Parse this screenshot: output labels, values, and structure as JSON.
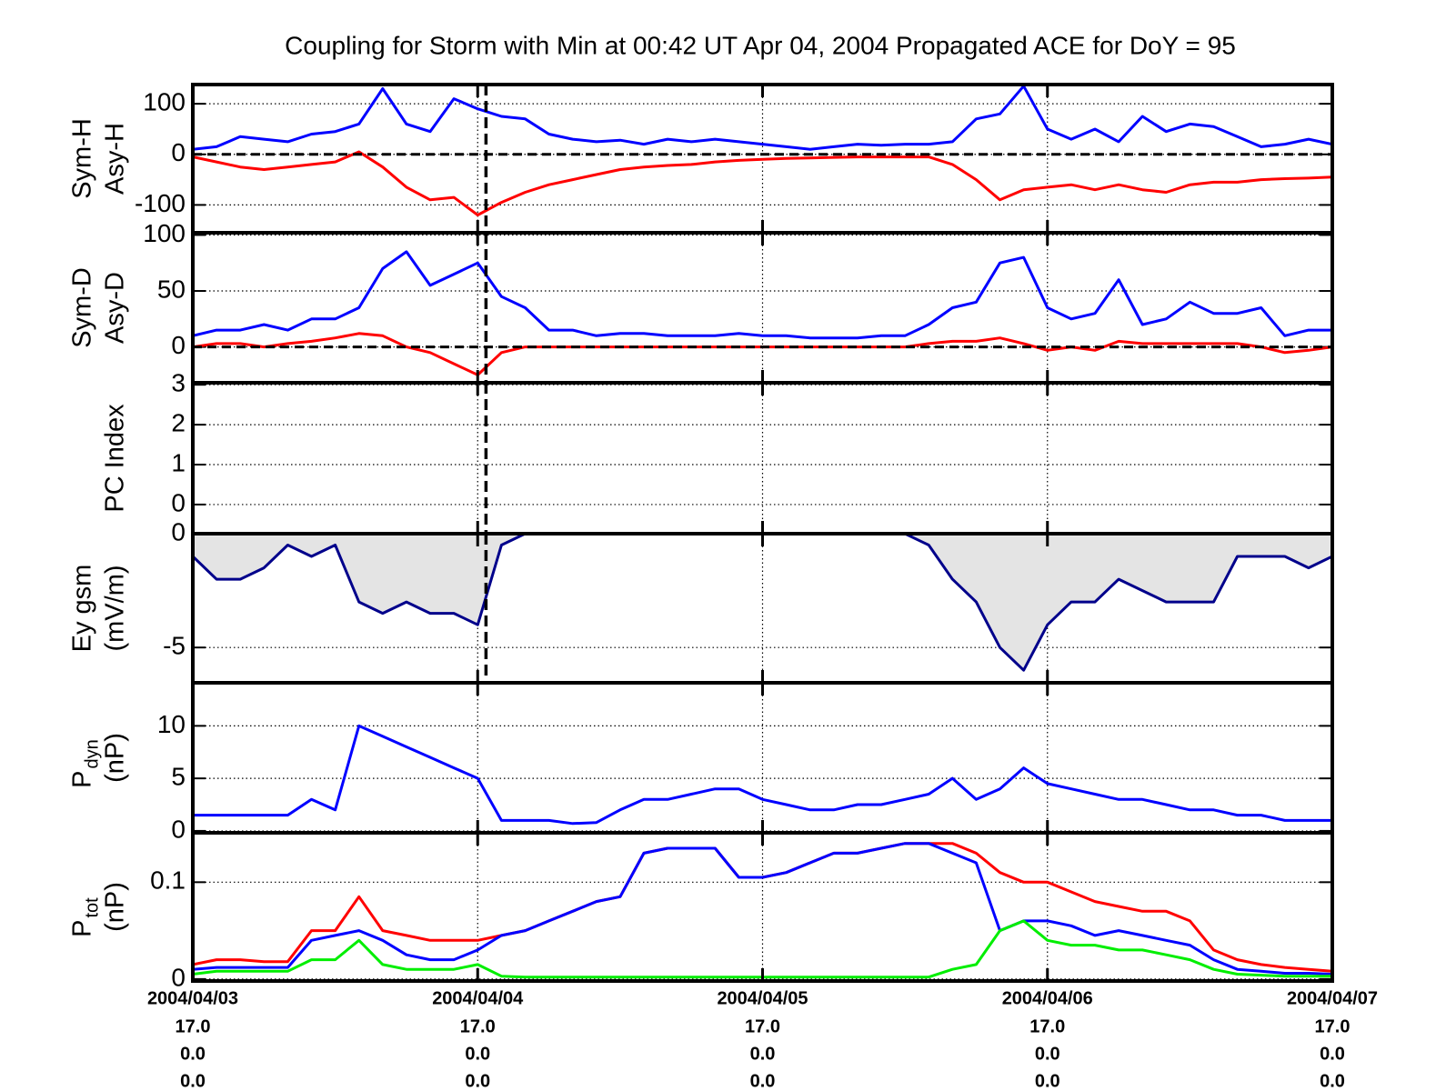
{
  "chart_data": [
    {
      "type": "line",
      "title": "Coupling for Storm with Min at 00:42 UT Apr 04, 2004  Propagated ACE for DoY = 95",
      "ylabel": [
        "Sym-H",
        "Asy-H"
      ],
      "ylim": [
        -155,
        138
      ],
      "yticks": [
        -100,
        0,
        100
      ],
      "grid": true,
      "zero_line": true,
      "event_x": 24.7,
      "xlim": [
        0,
        96
      ],
      "x": [
        0,
        2,
        4,
        6,
        8,
        10,
        12,
        14,
        16,
        18,
        20,
        22,
        24,
        26,
        28,
        30,
        32,
        34,
        36,
        38,
        40,
        42,
        44,
        46,
        48,
        50,
        52,
        54,
        56,
        58,
        60,
        62,
        64,
        66,
        68,
        70,
        72,
        74,
        76,
        78,
        80,
        82,
        84,
        86,
        88,
        90,
        92,
        94,
        96
      ],
      "series": [
        {
          "color": "#0000ff",
          "values": [
            10,
            15,
            35,
            30,
            25,
            40,
            45,
            60,
            130,
            60,
            45,
            110,
            90,
            75,
            70,
            40,
            30,
            25,
            28,
            20,
            30,
            25,
            30,
            25,
            20,
            15,
            10,
            15,
            20,
            18,
            20,
            20,
            25,
            70,
            80,
            135,
            50,
            30,
            50,
            25,
            75,
            45,
            60,
            55,
            35,
            15,
            20,
            30,
            20
          ]
        },
        {
          "color": "#ff0000",
          "values": [
            -5,
            -15,
            -25,
            -30,
            -25,
            -20,
            -15,
            5,
            -25,
            -65,
            -90,
            -85,
            -120,
            -95,
            -75,
            -60,
            -50,
            -40,
            -30,
            -25,
            -22,
            -20,
            -15,
            -12,
            -10,
            -8,
            -7,
            -6,
            -5,
            -5,
            -5,
            -5,
            -20,
            -50,
            -90,
            -70,
            -65,
            -60,
            -70,
            -60,
            -70,
            -75,
            -60,
            -55,
            -55,
            -50,
            -48,
            -47,
            -45
          ]
        }
      ]
    },
    {
      "type": "line",
      "ylabel": [
        "Sym-D",
        "Asy-D"
      ],
      "ylim": [
        -32,
        102
      ],
      "yticks": [
        0,
        50,
        100
      ],
      "grid": true,
      "zero_line": true,
      "event_x": 24.7,
      "xlim": [
        0,
        96
      ],
      "x": [
        0,
        2,
        4,
        6,
        8,
        10,
        12,
        14,
        16,
        18,
        20,
        22,
        24,
        26,
        28,
        30,
        32,
        34,
        36,
        38,
        40,
        42,
        44,
        46,
        48,
        50,
        52,
        54,
        56,
        58,
        60,
        62,
        64,
        66,
        68,
        70,
        72,
        74,
        76,
        78,
        80,
        82,
        84,
        86,
        88,
        90,
        92,
        94,
        96
      ],
      "series": [
        {
          "color": "#0000ff",
          "values": [
            10,
            15,
            15,
            20,
            15,
            25,
            25,
            35,
            70,
            85,
            55,
            65,
            75,
            45,
            35,
            15,
            15,
            10,
            12,
            12,
            10,
            10,
            10,
            12,
            10,
            10,
            8,
            8,
            8,
            10,
            10,
            20,
            35,
            40,
            75,
            80,
            35,
            25,
            30,
            60,
            20,
            25,
            40,
            30,
            30,
            35,
            10,
            15,
            15
          ]
        },
        {
          "color": "#ff0000",
          "values": [
            0,
            3,
            3,
            0,
            3,
            5,
            8,
            12,
            10,
            0,
            -5,
            -15,
            -25,
            -5,
            0,
            0,
            0,
            0,
            0,
            0,
            0,
            0,
            0,
            0,
            0,
            0,
            0,
            0,
            0,
            0,
            0,
            3,
            5,
            5,
            8,
            3,
            -3,
            0,
            -3,
            5,
            3,
            3,
            3,
            3,
            3,
            0,
            -5,
            -3,
            0
          ]
        }
      ]
    },
    {
      "type": "line",
      "ylabel": [
        "PC Index"
      ],
      "ylim": [
        -0.73,
        3.05
      ],
      "yticks": [
        0,
        1,
        2,
        3
      ],
      "grid": true,
      "event_x": 24.7,
      "xlim": [
        0,
        96
      ],
      "series": []
    },
    {
      "type": "area",
      "ylabel": [
        "Ey gsm",
        "(mV/m)"
      ],
      "ylim": [
        -6.55,
        0
      ],
      "yticks": [
        -5,
        0
      ],
      "grid": true,
      "event_x": 24.7,
      "xlim": [
        0,
        96
      ],
      "fill": "#e4e4e4",
      "x": [
        0,
        2,
        4,
        6,
        8,
        10,
        12,
        14,
        16,
        18,
        20,
        22,
        24,
        26,
        28,
        30,
        32,
        34,
        36,
        38,
        40,
        42,
        44,
        46,
        48,
        50,
        52,
        54,
        56,
        58,
        60,
        62,
        64,
        66,
        68,
        70,
        72,
        74,
        76,
        78,
        80,
        82,
        84,
        86,
        88,
        90,
        92,
        94,
        96
      ],
      "series": [
        {
          "color": "#00008b",
          "values": [
            -1,
            -2,
            -2,
            -1.5,
            -0.5,
            -1,
            -0.5,
            -3,
            -3.5,
            -3,
            -3.5,
            -3.5,
            -4,
            -0.5,
            0,
            0,
            0,
            0,
            0,
            0,
            0,
            0,
            0,
            0,
            0,
            0,
            0,
            0,
            0,
            0,
            0,
            -0.5,
            -2,
            -3,
            -5,
            -6,
            -4,
            -3,
            -3,
            -2,
            -2.5,
            -3,
            -3,
            -3,
            -1,
            -1,
            -1,
            -1.5,
            -1
          ]
        }
      ]
    },
    {
      "type": "line",
      "ylabel": [
        "P",
        "(nP)"
      ],
      "ylabel_sub": "dyn",
      "ylim": [
        -0.18,
        14.1
      ],
      "yticks": [
        0,
        5,
        10
      ],
      "grid": true,
      "xlim": [
        0,
        96
      ],
      "x": [
        0,
        2,
        4,
        6,
        8,
        10,
        12,
        14,
        16,
        18,
        20,
        22,
        24,
        26,
        28,
        30,
        32,
        34,
        36,
        38,
        40,
        42,
        44,
        46,
        48,
        50,
        52,
        54,
        56,
        58,
        60,
        62,
        64,
        66,
        68,
        70,
        72,
        74,
        76,
        78,
        80,
        82,
        84,
        86,
        88,
        90,
        92,
        94,
        96
      ],
      "series": [
        {
          "color": "#0000ff",
          "values": [
            1.5,
            1.5,
            1.5,
            1.5,
            1.5,
            3,
            2,
            10,
            9,
            8,
            7,
            6,
            5,
            1,
            1,
            1,
            0.7,
            0.8,
            2,
            3,
            3,
            3.5,
            4,
            4,
            3,
            2.5,
            2,
            2,
            2.5,
            2.5,
            3,
            3.5,
            5,
            3,
            4,
            6,
            4.5,
            4,
            3.5,
            3,
            3,
            2.5,
            2,
            2,
            1.5,
            1.5,
            1,
            1,
            1
          ]
        }
      ]
    },
    {
      "type": "line",
      "ylabel": [
        "P",
        "(nP)"
      ],
      "ylabel_sub": "tot",
      "ylim": [
        -0.002,
        0.151
      ],
      "yticks": [
        0,
        0.1
      ],
      "grid": true,
      "xlim": [
        0,
        96
      ],
      "xticks": [
        {
          "value": 0,
          "label": "2004/04/03"
        },
        {
          "value": 24,
          "label": "2004/04/04"
        },
        {
          "value": 48,
          "label": "2004/04/05"
        },
        {
          "value": 72,
          "label": "2004/04/06"
        },
        {
          "value": 96,
          "label": "2004/04/07"
        }
      ],
      "xtick_rows": [
        [
          "17.0",
          "0.0",
          "0.0"
        ],
        [
          "17.0",
          "0.0",
          "0.0"
        ],
        [
          "17.0",
          "0.0",
          "0.0"
        ],
        [
          "17.0",
          "0.0",
          "0.0"
        ],
        [
          "17.0",
          "0.0",
          "0.0"
        ]
      ],
      "x": [
        0,
        2,
        4,
        6,
        8,
        10,
        12,
        14,
        16,
        18,
        20,
        22,
        24,
        26,
        28,
        30,
        32,
        34,
        36,
        38,
        40,
        42,
        44,
        46,
        48,
        50,
        52,
        54,
        56,
        58,
        60,
        62,
        64,
        66,
        68,
        70,
        72,
        74,
        76,
        78,
        80,
        82,
        84,
        86,
        88,
        90,
        92,
        94,
        96
      ],
      "series": [
        {
          "color": "#ff0000",
          "values": [
            0.015,
            0.02,
            0.02,
            0.018,
            0.018,
            0.05,
            0.05,
            0.085,
            0.05,
            0.045,
            0.04,
            0.04,
            0.04,
            0.045,
            0.05,
            0.06,
            0.07,
            0.08,
            0.085,
            0.13,
            0.135,
            0.135,
            0.135,
            0.105,
            0.105,
            0.11,
            0.12,
            0.13,
            0.13,
            0.135,
            0.14,
            0.14,
            0.14,
            0.13,
            0.11,
            0.1,
            0.1,
            0.09,
            0.08,
            0.075,
            0.07,
            0.07,
            0.06,
            0.03,
            0.02,
            0.015,
            0.012,
            0.01,
            0.008
          ]
        },
        {
          "color": "#0000ff",
          "values": [
            0.01,
            0.012,
            0.012,
            0.012,
            0.012,
            0.04,
            0.045,
            0.05,
            0.04,
            0.025,
            0.02,
            0.02,
            0.03,
            0.045,
            0.05,
            0.06,
            0.07,
            0.08,
            0.085,
            0.13,
            0.135,
            0.135,
            0.135,
            0.105,
            0.105,
            0.11,
            0.12,
            0.13,
            0.13,
            0.135,
            0.14,
            0.14,
            0.13,
            0.12,
            0.05,
            0.06,
            0.06,
            0.055,
            0.045,
            0.05,
            0.045,
            0.04,
            0.035,
            0.02,
            0.01,
            0.008,
            0.006,
            0.006,
            0.005
          ]
        },
        {
          "color": "#00ee00",
          "values": [
            0.005,
            0.008,
            0.008,
            0.008,
            0.008,
            0.02,
            0.02,
            0.04,
            0.015,
            0.01,
            0.01,
            0.01,
            0.015,
            0.003,
            0.002,
            0.002,
            0.002,
            0.002,
            0.002,
            0.002,
            0.002,
            0.002,
            0.002,
            0.002,
            0.002,
            0.002,
            0.002,
            0.002,
            0.002,
            0.002,
            0.002,
            0.002,
            0.01,
            0.015,
            0.05,
            0.06,
            0.04,
            0.035,
            0.035,
            0.03,
            0.03,
            0.025,
            0.02,
            0.01,
            0.005,
            0.004,
            0.003,
            0.003,
            0.003
          ]
        }
      ]
    }
  ]
}
